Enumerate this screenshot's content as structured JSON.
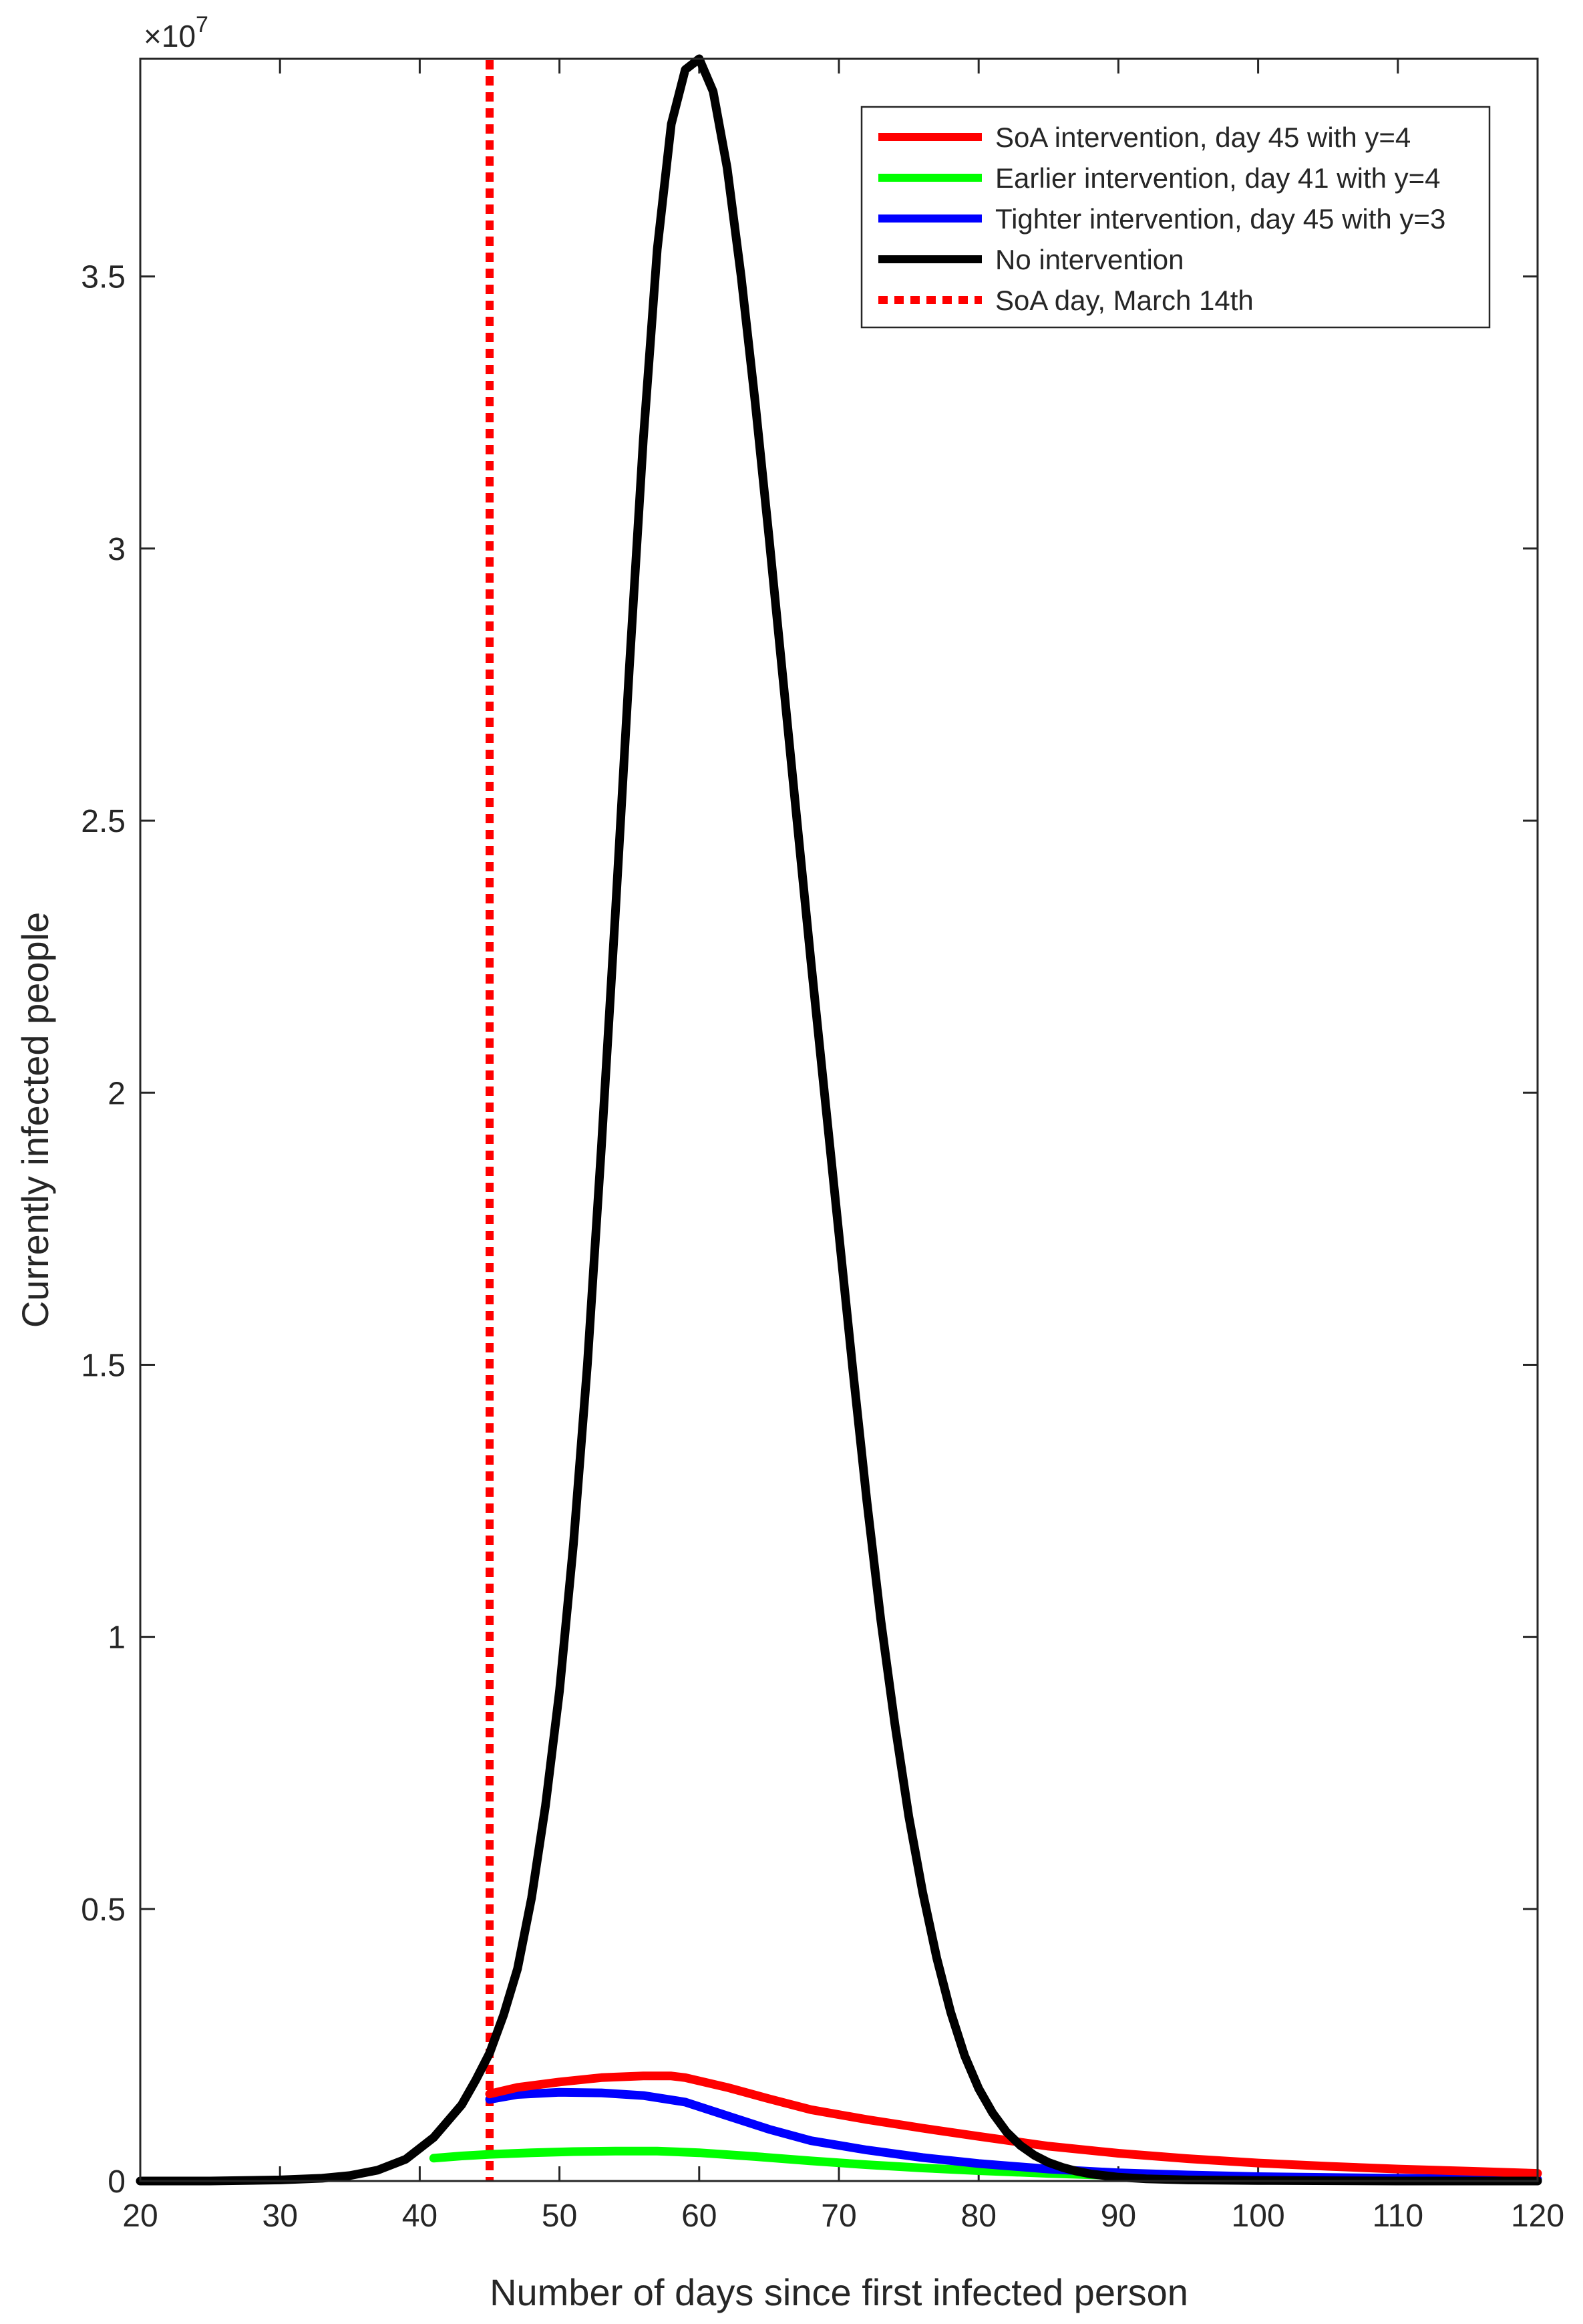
{
  "chart_data": {
    "type": "line",
    "title": "",
    "xlabel": "Number of days since first infected person",
    "ylabel": "Currently infected people",
    "y_exponent_label": "×10",
    "y_exponent_power": "7",
    "xlim": [
      20,
      120
    ],
    "ylim": [
      0,
      3.9
    ],
    "x_ticks": [
      20,
      30,
      40,
      50,
      60,
      70,
      80,
      90,
      100,
      110,
      120
    ],
    "x_tick_labels": [
      "20",
      "30",
      "40",
      "50",
      "60",
      "70",
      "80",
      "90",
      "100",
      "110",
      "120"
    ],
    "y_ticks": [
      0,
      0.5,
      1,
      1.5,
      2,
      2.5,
      3,
      3.5
    ],
    "y_tick_labels": [
      "0",
      "0.5",
      "1",
      "1.5",
      "2",
      "2.5",
      "3",
      "3.5"
    ],
    "grid": false,
    "legend_position": "top-right",
    "series": [
      {
        "name": "SoA intervention, day 45 with y=4",
        "color": "#ff0000",
        "style": "solid",
        "x": [
          45,
          47,
          50,
          53,
          56,
          58,
          59,
          62,
          65,
          68,
          72,
          76,
          80,
          85,
          90,
          95,
          100,
          105,
          110,
          115,
          120
        ],
        "y": [
          0.16,
          0.172,
          0.182,
          0.19,
          0.193,
          0.193,
          0.19,
          0.172,
          0.151,
          0.131,
          0.113,
          0.097,
          0.082,
          0.064,
          0.051,
          0.041,
          0.033,
          0.027,
          0.022,
          0.018,
          0.014
        ]
      },
      {
        "name": "Earlier intervention, day 41 with y=4",
        "color": "#00ff00",
        "style": "solid",
        "x": [
          41,
          43,
          45,
          48,
          51,
          54,
          57,
          60,
          64,
          68,
          72,
          76,
          80,
          85,
          90,
          100,
          110,
          120
        ],
        "y": [
          0.042,
          0.046,
          0.049,
          0.052,
          0.054,
          0.055,
          0.055,
          0.052,
          0.045,
          0.037,
          0.03,
          0.024,
          0.019,
          0.014,
          0.01,
          0.006,
          0.004,
          0.003
        ]
      },
      {
        "name": "Tighter intervention, day 45 with y=3",
        "color": "#0000ff",
        "style": "solid",
        "x": [
          45,
          47,
          50,
          53,
          56,
          59,
          62,
          65,
          68,
          72,
          76,
          80,
          85,
          90,
          95,
          100,
          110,
          120
        ],
        "y": [
          0.15,
          0.159,
          0.163,
          0.162,
          0.157,
          0.145,
          0.12,
          0.095,
          0.074,
          0.057,
          0.043,
          0.032,
          0.022,
          0.015,
          0.011,
          0.008,
          0.005,
          0.003
        ]
      },
      {
        "name": "No intervention",
        "color": "#000000",
        "style": "solid",
        "x": [
          20,
          25,
          30,
          33,
          35,
          37,
          39,
          41,
          43,
          44,
          45,
          46,
          47,
          48,
          49,
          50,
          51,
          52,
          53,
          54,
          55,
          56,
          57,
          58,
          59,
          60,
          61,
          62,
          63,
          64,
          65,
          66,
          67,
          68,
          69,
          70,
          71,
          72,
          73,
          74,
          75,
          76,
          77,
          78,
          79,
          80,
          81,
          82,
          83,
          84,
          85,
          86,
          87,
          88,
          90,
          92,
          95,
          100,
          110,
          120
        ],
        "y": [
          0.0,
          0.0,
          0.002,
          0.005,
          0.01,
          0.02,
          0.04,
          0.08,
          0.14,
          0.185,
          0.235,
          0.305,
          0.39,
          0.52,
          0.69,
          0.9,
          1.17,
          1.5,
          1.9,
          2.33,
          2.78,
          3.2,
          3.55,
          3.78,
          3.88,
          3.9,
          3.84,
          3.7,
          3.5,
          3.27,
          3.02,
          2.76,
          2.5,
          2.24,
          1.99,
          1.74,
          1.49,
          1.25,
          1.03,
          0.84,
          0.67,
          0.53,
          0.41,
          0.31,
          0.23,
          0.17,
          0.125,
          0.09,
          0.065,
          0.047,
          0.034,
          0.025,
          0.018,
          0.013,
          0.007,
          0.004,
          0.002,
          0.001,
          0.0,
          0.0
        ]
      }
    ],
    "reference_lines": [
      {
        "name": "SoA day, March 14th",
        "x": 45,
        "color": "#ff0000",
        "style": "dotted"
      }
    ]
  }
}
